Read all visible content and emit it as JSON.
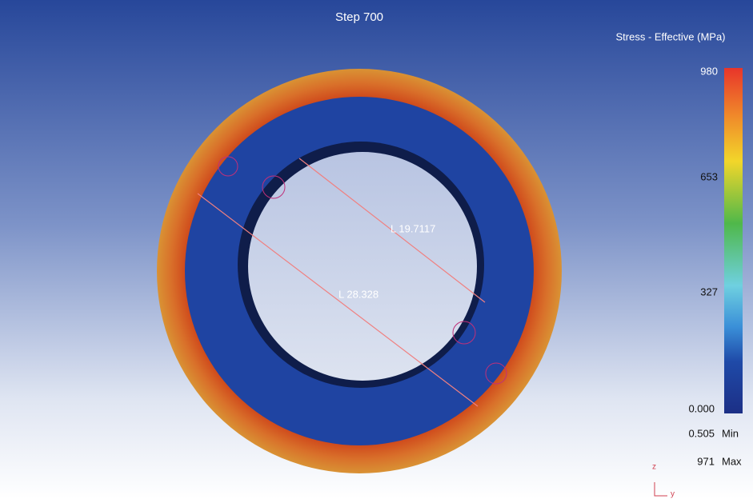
{
  "header": {
    "title": "Step 700"
  },
  "legend": {
    "title": "Stress - Effective (MPa)",
    "ticks": [
      "980",
      "653",
      "327",
      "0.000"
    ],
    "min": {
      "value": "0.505",
      "label": "Min"
    },
    "max": {
      "value": "971",
      "label": "Max"
    }
  },
  "measurements": [
    {
      "label": "L 19.7117"
    },
    {
      "label": "L 28.328"
    }
  ],
  "axes": {
    "vertical": "z",
    "horizontal": "y"
  }
}
